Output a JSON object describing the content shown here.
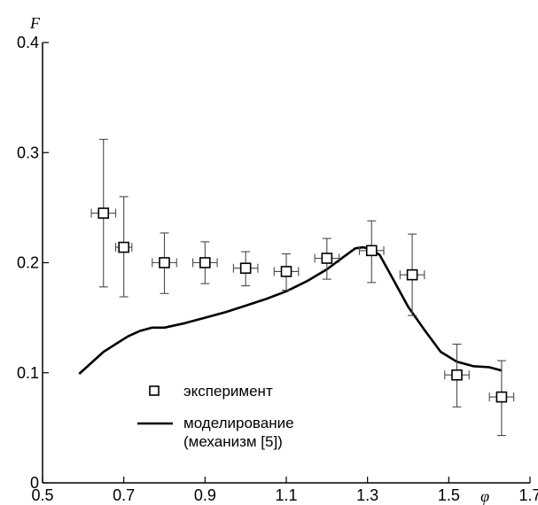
{
  "chart_data": {
    "type": "scatter",
    "title": "",
    "xlabel": "φ",
    "ylabel": "F",
    "xlim": [
      0.5,
      1.7
    ],
    "ylim": [
      0,
      0.4
    ],
    "x_ticks": [
      0.5,
      0.7,
      0.9,
      1.1,
      1.3,
      1.5,
      1.7
    ],
    "x_tick_labels": [
      "0.5",
      "0.7",
      "0.9",
      "1.1",
      "1.3",
      "1.5",
      "1.7"
    ],
    "y_ticks": [
      0,
      0.1,
      0.2,
      0.3,
      0.4
    ],
    "y_tick_labels": [
      "0",
      "0.1",
      "0.2",
      "0.3",
      "0.4"
    ],
    "grid": false,
    "legend_position": "lower-left",
    "series": [
      {
        "name": "эксперимент",
        "kind": "points-with-error-bars",
        "marker": "open-square",
        "points": [
          {
            "x": 0.65,
            "y": 0.245,
            "xerr": 0.03,
            "ylo": 0.178,
            "yhi": 0.312
          },
          {
            "x": 0.7,
            "y": 0.214,
            "xerr": 0.02,
            "ylo": 0.169,
            "yhi": 0.26
          },
          {
            "x": 0.8,
            "y": 0.2,
            "xerr": 0.03,
            "ylo": 0.172,
            "yhi": 0.227
          },
          {
            "x": 0.9,
            "y": 0.2,
            "xerr": 0.03,
            "ylo": 0.181,
            "yhi": 0.219
          },
          {
            "x": 1.0,
            "y": 0.195,
            "xerr": 0.03,
            "ylo": 0.179,
            "yhi": 0.21
          },
          {
            "x": 1.1,
            "y": 0.192,
            "xerr": 0.03,
            "ylo": 0.175,
            "yhi": 0.208
          },
          {
            "x": 1.2,
            "y": 0.204,
            "xerr": 0.03,
            "ylo": 0.185,
            "yhi": 0.222
          },
          {
            "x": 1.31,
            "y": 0.211,
            "xerr": 0.03,
            "ylo": 0.182,
            "yhi": 0.238
          },
          {
            "x": 1.41,
            "y": 0.189,
            "xerr": 0.03,
            "ylo": 0.152,
            "yhi": 0.226
          },
          {
            "x": 1.52,
            "y": 0.098,
            "xerr": 0.03,
            "ylo": 0.069,
            "yhi": 0.126
          },
          {
            "x": 1.63,
            "y": 0.078,
            "xerr": 0.03,
            "ylo": 0.043,
            "yhi": 0.111
          }
        ]
      },
      {
        "name": "моделирование\n(механизм [5])",
        "kind": "line",
        "x": [
          0.59,
          0.62,
          0.65,
          0.68,
          0.71,
          0.74,
          0.77,
          0.8,
          0.85,
          0.9,
          0.95,
          1.0,
          1.05,
          1.1,
          1.15,
          1.2,
          1.24,
          1.27,
          1.29,
          1.31,
          1.33,
          1.36,
          1.4,
          1.44,
          1.48,
          1.52,
          1.56,
          1.6,
          1.63
        ],
        "values": [
          0.099,
          0.109,
          0.119,
          0.126,
          0.133,
          0.138,
          0.141,
          0.141,
          0.145,
          0.15,
          0.155,
          0.161,
          0.167,
          0.174,
          0.183,
          0.194,
          0.205,
          0.213,
          0.214,
          0.212,
          0.207,
          0.187,
          0.16,
          0.139,
          0.119,
          0.11,
          0.106,
          0.105,
          0.102
        ]
      }
    ]
  },
  "legend": {
    "items": [
      {
        "marker": "square",
        "label": "эксперимент"
      },
      {
        "marker": "line",
        "label_lines": [
          "моделирование",
          "(механизм [5])"
        ]
      }
    ]
  },
  "colors": {
    "axis": "#000000",
    "line": "#000000",
    "marker_fill": "#ffffff",
    "marker_stroke": "#000000",
    "error_bar": "#4a4a4a"
  }
}
